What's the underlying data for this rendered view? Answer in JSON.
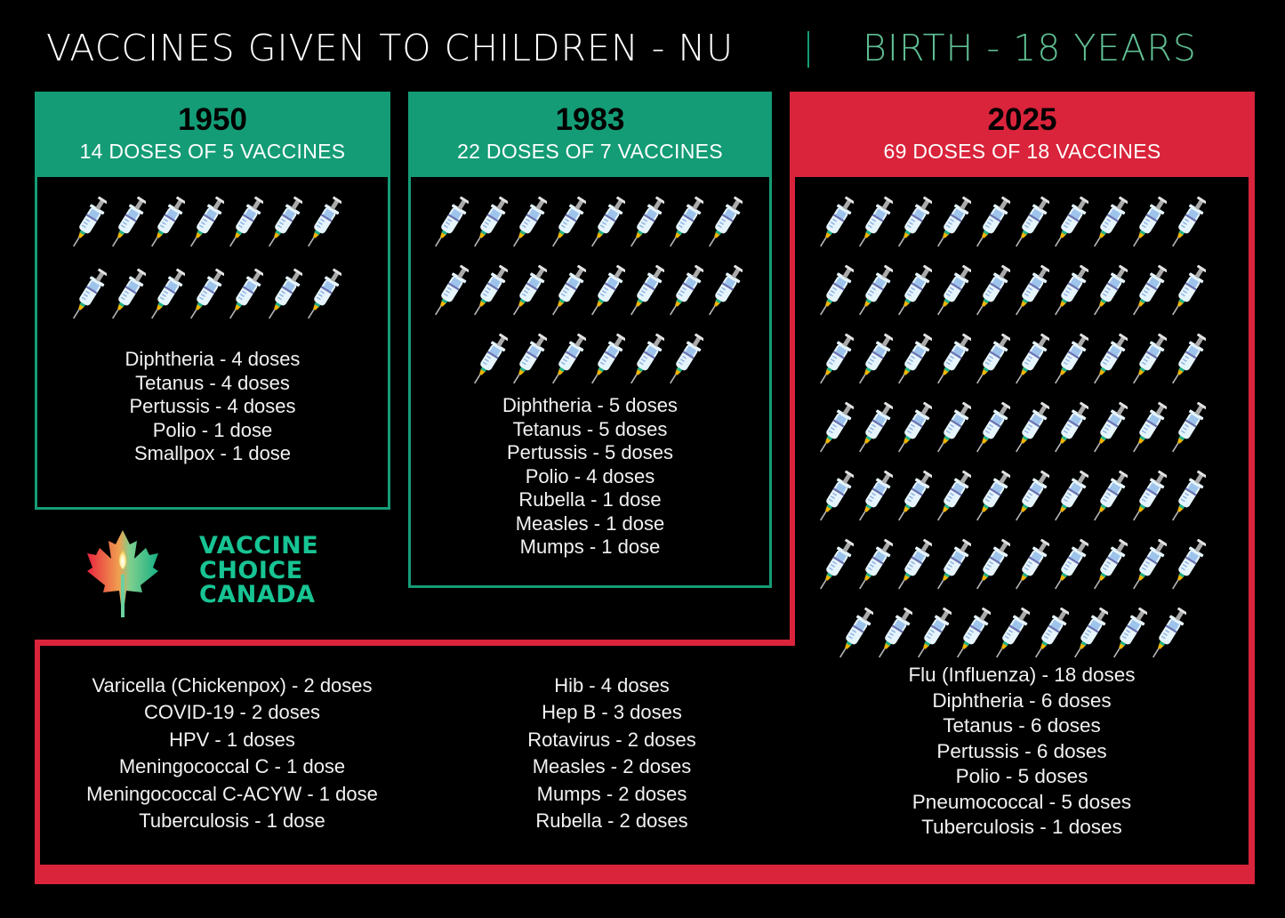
{
  "header": {
    "title": "VACCINES GIVEN TO CHILDREN - NU",
    "separator": "|",
    "subtitle": "BIRTH - 18 YEARS"
  },
  "colors": {
    "green_panel": "#149c76",
    "red_panel": "#d9243b",
    "subtitle_green": "#5fbf93",
    "logo_green": "#17c493",
    "background": "#000000"
  },
  "panels": [
    {
      "year": "1950",
      "summary": "14 DOSES OF 5 VACCINES",
      "syringe_count": 14,
      "vaccines": [
        "Diphtheria - 4 doses",
        "Tetanus - 4 doses",
        "Pertussis - 4 doses",
        "Polio - 1 dose",
        "Smallpox - 1 dose"
      ]
    },
    {
      "year": "1983",
      "summary": "22 DOSES OF 7 VACCINES",
      "syringe_count": 22,
      "vaccines": [
        "Diphtheria - 5 doses",
        "Tetanus - 5 doses",
        "Pertussis - 5 doses",
        "Polio - 4 doses",
        "Rubella - 1 dose",
        "Measles - 1 dose",
        "Mumps - 1 dose"
      ]
    },
    {
      "year": "2025",
      "summary": "69 DOSES OF 18 VACCINES",
      "syringe_count": 69,
      "vaccines_right": [
        "Flu (Influenza) - 18 doses",
        "Diphtheria - 6 doses",
        "Tetanus - 6 doses",
        "Pertussis - 6 doses",
        "Polio - 5 doses",
        "Pneumococcal - 5 doses",
        "Tuberculosis - 1 doses"
      ],
      "vaccines_bottom_left": [
        "Varicella (Chickenpox) - 2 doses",
        "COVID-19 - 2 doses",
        "HPV - 1 doses",
        "Meningococcal C - 1 dose",
        "Meningococcal C-ACYW - 1 dose",
        "Tuberculosis - 1 dose"
      ],
      "vaccines_bottom_middle": [
        "Hib - 4 doses",
        "Hep B - 3 doses",
        "Rotavirus - 2 doses",
        "Measles - 2 doses",
        "Mumps - 2 doses",
        "Rubella - 2 doses"
      ]
    }
  ],
  "logo": {
    "lines": [
      "VACCINE",
      "CHOICE",
      "CANADA"
    ],
    "icon": "maple-leaf-candle-icon"
  }
}
